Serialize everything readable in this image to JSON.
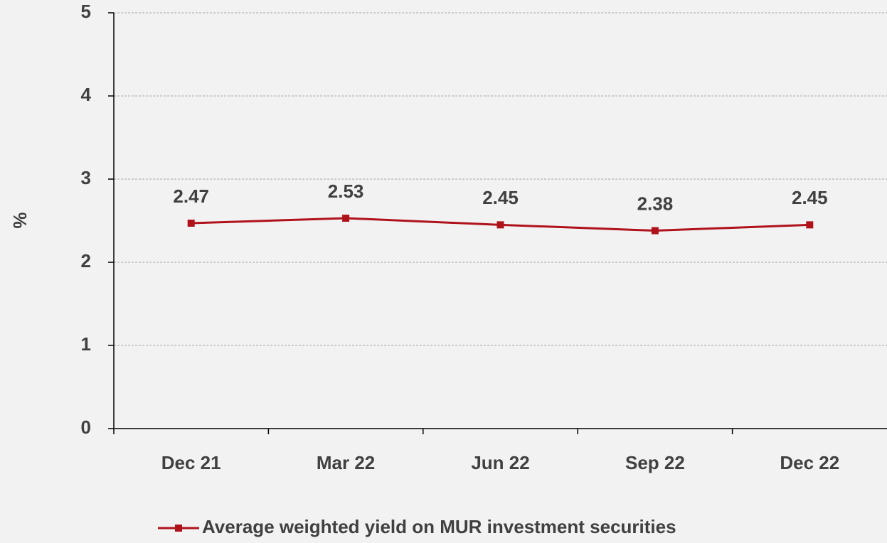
{
  "chart_data": {
    "type": "line",
    "y_label": "%",
    "categories": [
      "Dec 21",
      "Mar 22",
      "Jun 22",
      "Sep 22",
      "Dec 22"
    ],
    "series": [
      {
        "name": "Average weighted yield on MUR investment securities",
        "color": "#b0121b",
        "values": [
          2.47,
          2.53,
          2.45,
          2.38,
          2.45
        ]
      }
    ],
    "ylim": [
      0,
      5
    ],
    "yticks": [
      0,
      1,
      2,
      3,
      4,
      5
    ],
    "grid": true,
    "data_labels": true,
    "legend": "bottom"
  }
}
